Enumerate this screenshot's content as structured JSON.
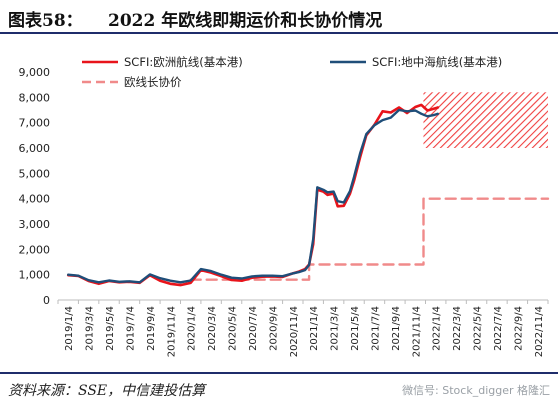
{
  "header": {
    "figure_label": "图表58：",
    "title": "2022 年欧线即期运价和长协价情况"
  },
  "footer": {
    "source": "资料来源：SSE，中信建投估算",
    "watermark": "微信号: Stock_digger  格隆汇"
  },
  "colors": {
    "scfi_europe": "#e8141b",
    "scfi_med": "#1f4e79",
    "contract": "#f08a8a",
    "axis": "#bdbdbd"
  },
  "chart_data": {
    "type": "line",
    "ylim": [
      0,
      9000
    ],
    "yticks": [
      "0",
      "1,000",
      "2,000",
      "3,000",
      "4,000",
      "5,000",
      "6,000",
      "7,000",
      "8,000",
      "9,000"
    ],
    "x_categories": [
      "2019/1/4",
      "2019/3/4",
      "2019/5/4",
      "2019/7/4",
      "2019/9/4",
      "2019/11/4",
      "2020/1/4",
      "2020/3/4",
      "2020/5/4",
      "2020/7/4",
      "2020/9/4",
      "2020/11/4",
      "2021/1/4",
      "2021/3/4",
      "2021/5/4",
      "2021/7/4",
      "2021/9/4",
      "2021/11/4",
      "2022/1/4",
      "2022/3/4",
      "2022/5/4",
      "2022/7/4",
      "2022/9/4",
      "2022/11/4"
    ],
    "legend": [
      {
        "name": "SCFI:欧洲航线(基本港)",
        "style": "solid",
        "color": "#e8141b"
      },
      {
        "name": "SCFI:地中海航线(基本港)",
        "style": "solid",
        "color": "#1f4e79"
      },
      {
        "name": "欧线长协价",
        "style": "dashed",
        "color": "#f08a8a"
      }
    ],
    "series": [
      {
        "name": "SCFI:欧洲航线(基本港)",
        "x": [
          0,
          0.5,
          1,
          1.5,
          2,
          2.5,
          3,
          3.5,
          4,
          4.5,
          5,
          5.5,
          6,
          6.5,
          7,
          7.5,
          8,
          8.5,
          9,
          9.5,
          10,
          10.5,
          11,
          11.3,
          11.6,
          11.8,
          12,
          12.2,
          12.5,
          12.7,
          13,
          13.2,
          13.5,
          13.8,
          14,
          14.3,
          14.6,
          15,
          15.4,
          15.8,
          16.2,
          16.6,
          17,
          17.3,
          17.6,
          17.9,
          18.1
        ],
        "y": [
          980,
          950,
          750,
          640,
          750,
          700,
          720,
          680,
          980,
          760,
          640,
          590,
          680,
          1180,
          1080,
          940,
          790,
          760,
          880,
          920,
          930,
          910,
          1050,
          1120,
          1220,
          1400,
          2200,
          4350,
          4280,
          4150,
          4200,
          3700,
          3720,
          4200,
          4700,
          5650,
          6500,
          6920,
          7450,
          7400,
          7600,
          7380,
          7620,
          7700,
          7480,
          7550,
          7600
        ]
      },
      {
        "name": "SCFI:地中海航线(基本港)",
        "x": [
          0,
          0.5,
          1,
          1.5,
          2,
          2.5,
          3,
          3.5,
          4,
          4.5,
          5,
          5.5,
          6,
          6.5,
          7,
          7.5,
          8,
          8.5,
          9,
          9.5,
          10,
          10.5,
          11,
          11.3,
          11.6,
          11.8,
          12,
          12.2,
          12.5,
          12.7,
          13,
          13.2,
          13.5,
          13.8,
          14,
          14.3,
          14.6,
          15,
          15.4,
          15.8,
          16.2,
          16.6,
          17,
          17.3,
          17.6,
          17.9,
          18.1
        ],
        "y": [
          1000,
          960,
          780,
          700,
          770,
          720,
          740,
          700,
          1010,
          860,
          760,
          700,
          770,
          1220,
          1140,
          1000,
          880,
          850,
          930,
          960,
          960,
          940,
          1050,
          1100,
          1180,
          1380,
          2400,
          4450,
          4350,
          4250,
          4280,
          3900,
          3850,
          4300,
          4850,
          5800,
          6550,
          6900,
          7100,
          7200,
          7500,
          7450,
          7480,
          7350,
          7250,
          7300,
          7350
        ]
      },
      {
        "name": "欧线长协价",
        "x": [
          6,
          7,
          8,
          9,
          10,
          11,
          11.8,
          11.8,
          12.5,
          13.5,
          14.5,
          15.5,
          16.5,
          17.4,
          17.4,
          18,
          19,
          20,
          21,
          22,
          23.5
        ],
        "y": [
          800,
          800,
          800,
          800,
          800,
          800,
          800,
          1400,
          1400,
          1400,
          1400,
          1400,
          1400,
          1400,
          4000,
          4000,
          4000,
          4000,
          4000,
          4000,
          4000
        ]
      }
    ],
    "shaded_band": {
      "x_from": 17.4,
      "x_to": 23.5,
      "y_from": 6000,
      "y_to": 8200
    }
  }
}
